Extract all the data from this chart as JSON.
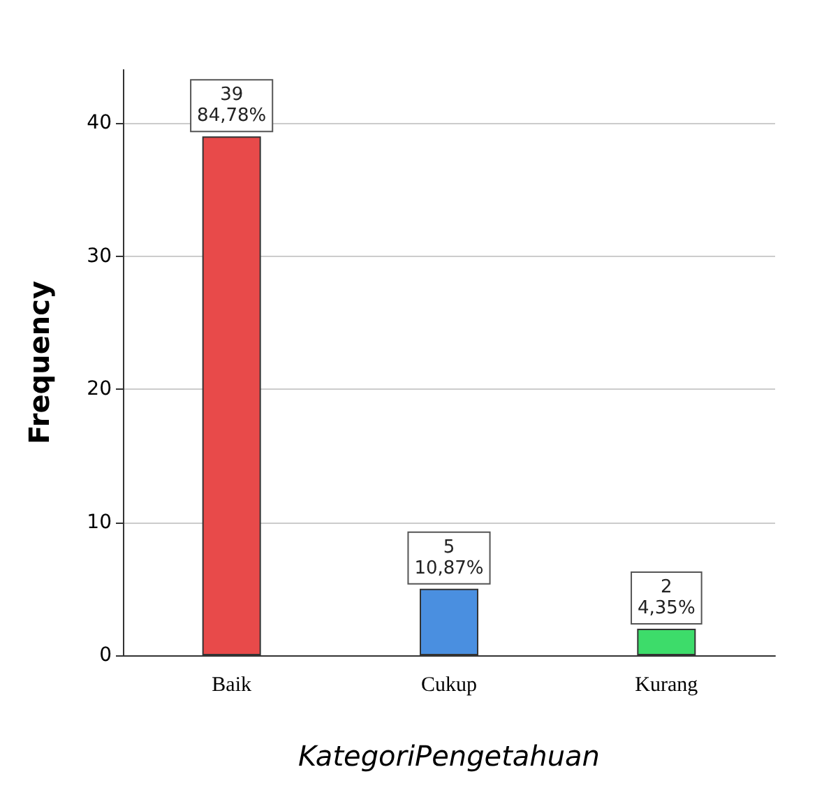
{
  "chart_data": {
    "type": "bar",
    "xlabel": "KategoriPengetahuan",
    "ylabel": "Frequency",
    "categories": [
      "Baik",
      "Cukup",
      "Kurang"
    ],
    "values": [
      39,
      5,
      2
    ],
    "colors": [
      "#e84a4a",
      "#4a8fe0",
      "#3ddc6a"
    ],
    "value_labels": [
      "39\n84,78%",
      "5\n10,87%",
      "2\n4,35%"
    ],
    "ylim": [
      0,
      44
    ],
    "yticks": [
      0,
      10,
      20,
      30,
      40
    ],
    "grid": "y"
  }
}
